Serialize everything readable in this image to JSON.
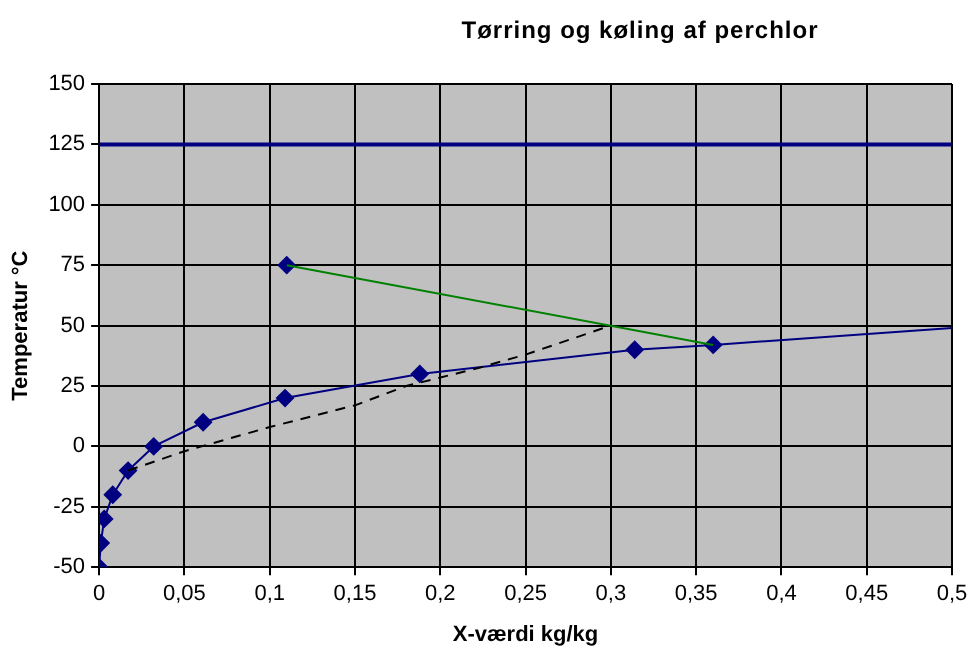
{
  "chart_data": {
    "type": "line",
    "title": "Tørring og køling af perchlor",
    "xlabel": "X-værdi kg/kg",
    "ylabel": "Temperatur °C",
    "xlim": [
      0,
      0.5
    ],
    "ylim": [
      -50,
      150
    ],
    "xticks": [
      0,
      {
        "value": 0.05,
        "label": "0,05"
      },
      {
        "value": 0.1,
        "label": "0,1"
      },
      {
        "value": 0.15,
        "label": "0,15"
      },
      {
        "value": 0.2,
        "label": "0,2"
      },
      {
        "value": 0.25,
        "label": "0,25"
      },
      {
        "value": 0.3,
        "label": "0,3"
      },
      {
        "value": 0.35,
        "label": "0,35"
      },
      {
        "value": 0.4,
        "label": "0,4"
      },
      {
        "value": 0.45,
        "label": "0,45"
      },
      {
        "value": 0.5,
        "label": "0,5"
      }
    ],
    "yticks": [
      -50,
      -25,
      0,
      25,
      50,
      75,
      100,
      125,
      150
    ],
    "grid": true,
    "legend": false,
    "ref_lines": [
      {
        "axis": "y",
        "value": 125,
        "color": "#000080"
      }
    ],
    "series": [
      {
        "color": "#000080",
        "marker": "diamond",
        "x": [
          0,
          0.001,
          0.003,
          0.008,
          0.017,
          0.032,
          0.061,
          0.109,
          0.188,
          0.314,
          0.36
        ],
        "values": [
          -50,
          -40,
          -30,
          -20,
          -10,
          0,
          10,
          20,
          30,
          40,
          42
        ]
      },
      {
        "color": "#000080",
        "marker": "none",
        "x": [
          0.36,
          0.5
        ],
        "values": [
          42,
          49
        ]
      },
      {
        "type": "scatter",
        "color": "#000080",
        "marker": "diamond",
        "x": [
          0.11
        ],
        "values": [
          75
        ]
      },
      {
        "color": "#000000",
        "marker": "none",
        "line_style": "dashed",
        "x": [
          0.017,
          0.05,
          0.1,
          0.15,
          0.18,
          0.22,
          0.25,
          0.3
        ],
        "values": [
          -10,
          -2,
          8,
          17,
          25,
          32,
          38,
          50
        ]
      },
      {
        "color": "#008000",
        "marker": "none",
        "x": [
          0.11,
          0.36
        ],
        "values": [
          75,
          42
        ]
      }
    ]
  }
}
